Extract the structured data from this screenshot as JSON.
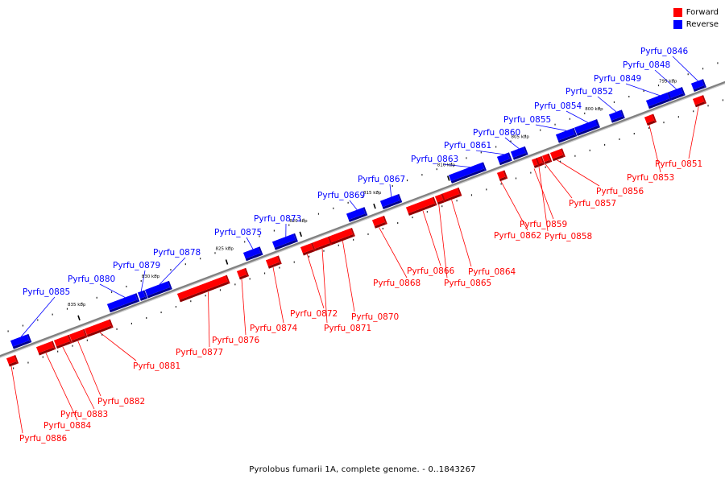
{
  "colors": {
    "forward": "#ff0000",
    "reverse": "#0000ff",
    "backbone": "#808080"
  },
  "legend": {
    "forward_label": "Forward",
    "reverse_label": "Reverse"
  },
  "caption": "Pyrolobus fumarii 1A, complete genome. - 0..1843267",
  "ticks": [
    {
      "label": "795 kbp",
      "pos": 795
    },
    {
      "label": "800 kbp",
      "pos": 800
    },
    {
      "label": "805 kbp",
      "pos": 805
    },
    {
      "label": "810 kbp",
      "pos": 810
    },
    {
      "label": "815 kbp",
      "pos": 815
    },
    {
      "label": "820 kbp",
      "pos": 820
    },
    {
      "label": "825 kbp",
      "pos": 825
    },
    {
      "label": "830 kbp",
      "pos": 830
    },
    {
      "label": "835 kbp",
      "pos": 835
    }
  ],
  "genes": [
    {
      "name": "Pyrfu_0846",
      "strand": "reverse"
    },
    {
      "name": "Pyrfu_0848",
      "strand": "reverse"
    },
    {
      "name": "Pyrfu_0849",
      "strand": "reverse"
    },
    {
      "name": "Pyrfu_0851",
      "strand": "forward"
    },
    {
      "name": "Pyrfu_0852",
      "strand": "reverse"
    },
    {
      "name": "Pyrfu_0853",
      "strand": "forward"
    },
    {
      "name": "Pyrfu_0854",
      "strand": "reverse"
    },
    {
      "name": "Pyrfu_0855",
      "strand": "reverse"
    },
    {
      "name": "Pyrfu_0856",
      "strand": "forward"
    },
    {
      "name": "Pyrfu_0857",
      "strand": "forward"
    },
    {
      "name": "Pyrfu_0858",
      "strand": "forward"
    },
    {
      "name": "Pyrfu_0859",
      "strand": "forward"
    },
    {
      "name": "Pyrfu_0860",
      "strand": "reverse"
    },
    {
      "name": "Pyrfu_0861",
      "strand": "reverse"
    },
    {
      "name": "Pyrfu_0862",
      "strand": "forward"
    },
    {
      "name": "Pyrfu_0863",
      "strand": "reverse"
    },
    {
      "name": "Pyrfu_0864",
      "strand": "forward"
    },
    {
      "name": "Pyrfu_0865",
      "strand": "forward"
    },
    {
      "name": "Pyrfu_0866",
      "strand": "forward"
    },
    {
      "name": "Pyrfu_0867",
      "strand": "reverse"
    },
    {
      "name": "Pyrfu_0868",
      "strand": "forward"
    },
    {
      "name": "Pyrfu_0869",
      "strand": "reverse"
    },
    {
      "name": "Pyrfu_0870",
      "strand": "forward"
    },
    {
      "name": "Pyrfu_0871",
      "strand": "forward"
    },
    {
      "name": "Pyrfu_0872",
      "strand": "forward"
    },
    {
      "name": "Pyrfu_0873",
      "strand": "reverse"
    },
    {
      "name": "Pyrfu_0874",
      "strand": "forward"
    },
    {
      "name": "Pyrfu_0875",
      "strand": "reverse"
    },
    {
      "name": "Pyrfu_0876",
      "strand": "forward"
    },
    {
      "name": "Pyrfu_0877",
      "strand": "forward"
    },
    {
      "name": "Pyrfu_0878",
      "strand": "reverse"
    },
    {
      "name": "Pyrfu_0879",
      "strand": "reverse"
    },
    {
      "name": "Pyrfu_0880",
      "strand": "reverse"
    },
    {
      "name": "Pyrfu_0881",
      "strand": "forward"
    },
    {
      "name": "Pyrfu_0882",
      "strand": "forward"
    },
    {
      "name": "Pyrfu_0883",
      "strand": "forward"
    },
    {
      "name": "Pyrfu_0884",
      "strand": "forward"
    },
    {
      "name": "Pyrfu_0885",
      "strand": "reverse"
    },
    {
      "name": "Pyrfu_0886",
      "strand": "forward"
    }
  ]
}
